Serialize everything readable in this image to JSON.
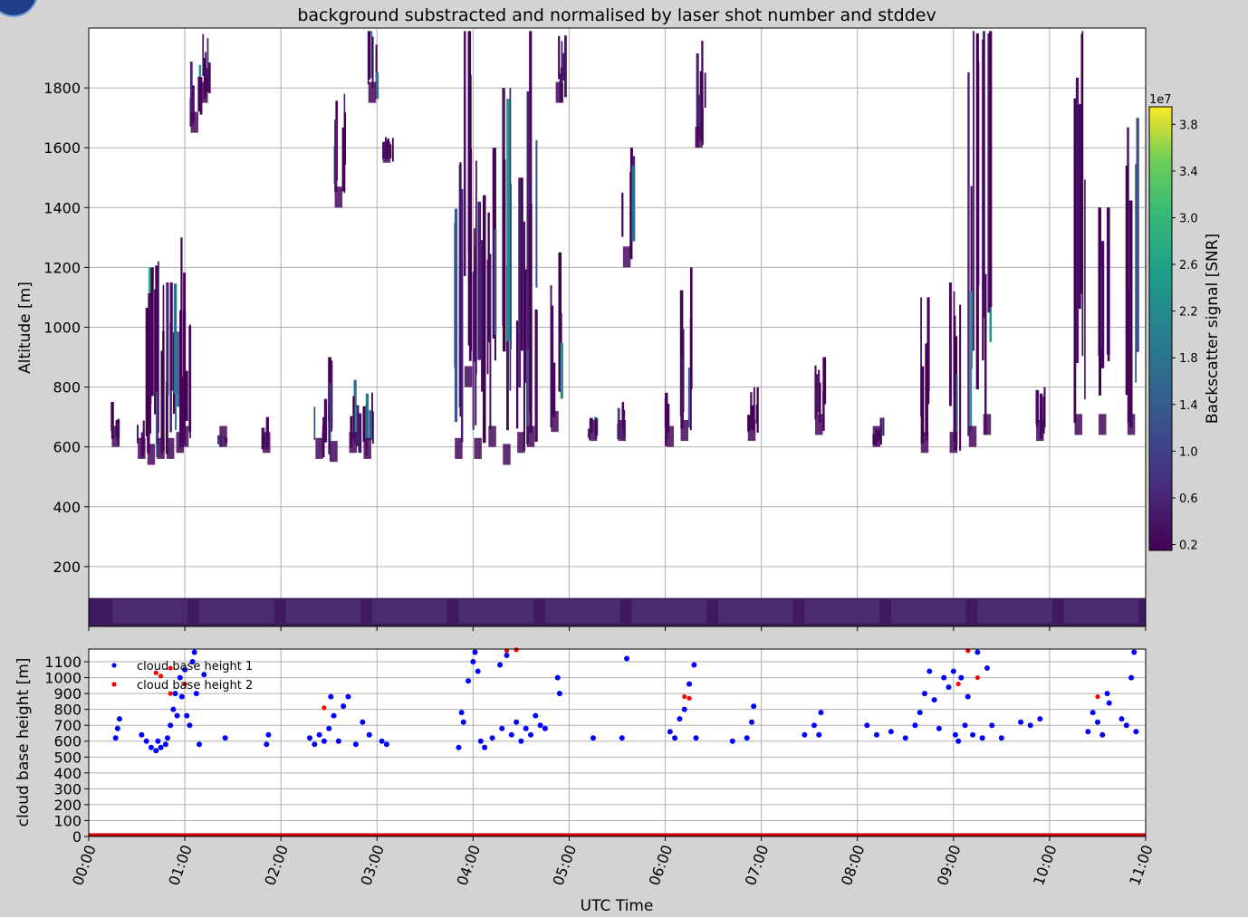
{
  "chart_data": [
    {
      "type": "heatmap",
      "title": "background substracted and normalised by laser shot number and stddev",
      "ylabel": "Altitude [m]",
      "xlim": [
        0,
        11
      ],
      "ylim": [
        0,
        2000
      ],
      "y_ticks": [
        "200",
        "400",
        "600",
        "800",
        "1000",
        "1200",
        "1400",
        "1600",
        "1800"
      ],
      "grid": true,
      "colorbar": {
        "label": "Backscatter signal [SNR]",
        "exponent": "1e7",
        "range": [
          0.15,
          3.95
        ],
        "ticks": [
          "0.2",
          "0.6",
          "1.0",
          "1.4",
          "1.8",
          "2.2",
          "2.6",
          "3.0",
          "3.4",
          "3.8"
        ],
        "colormap": "viridis"
      },
      "surface_layer": {
        "altitude_range_m": [
          0,
          95
        ],
        "description_color": "#3b1f5c"
      },
      "cloud_streaks": [
        {
          "t": 0.28,
          "y0": 600,
          "y1": 750
        },
        {
          "t": 0.55,
          "y0": 560,
          "y1": 700
        },
        {
          "t": 0.65,
          "y0": 540,
          "y1": 1200
        },
        {
          "t": 0.75,
          "y0": 560,
          "y1": 1300
        },
        {
          "t": 0.85,
          "y0": 560,
          "y1": 1150
        },
        {
          "t": 0.95,
          "y0": 580,
          "y1": 1100
        },
        {
          "t": 1.0,
          "y0": 600,
          "y1": 1300
        },
        {
          "t": 1.1,
          "y0": 1650,
          "y1": 1900
        },
        {
          "t": 1.2,
          "y0": 1750,
          "y1": 1980
        },
        {
          "t": 1.4,
          "y0": 600,
          "y1": 650
        },
        {
          "t": 1.85,
          "y0": 580,
          "y1": 700
        },
        {
          "t": 2.4,
          "y0": 560,
          "y1": 760
        },
        {
          "t": 2.55,
          "y0": 550,
          "y1": 900
        },
        {
          "t": 2.6,
          "y0": 1400,
          "y1": 1800
        },
        {
          "t": 2.75,
          "y0": 580,
          "y1": 850
        },
        {
          "t": 2.9,
          "y0": 560,
          "y1": 800
        },
        {
          "t": 2.95,
          "y0": 1750,
          "y1": 1990
        },
        {
          "t": 3.1,
          "y0": 1550,
          "y1": 1650
        },
        {
          "t": 3.85,
          "y0": 560,
          "y1": 1600
        },
        {
          "t": 3.95,
          "y0": 800,
          "y1": 1990
        },
        {
          "t": 4.05,
          "y0": 560,
          "y1": 1700
        },
        {
          "t": 4.2,
          "y0": 600,
          "y1": 1600
        },
        {
          "t": 4.35,
          "y0": 540,
          "y1": 1800
        },
        {
          "t": 4.5,
          "y0": 580,
          "y1": 1500
        },
        {
          "t": 4.6,
          "y0": 600,
          "y1": 1990
        },
        {
          "t": 4.85,
          "y0": 650,
          "y1": 1250
        },
        {
          "t": 4.9,
          "y0": 1750,
          "y1": 1990
        },
        {
          "t": 5.25,
          "y0": 620,
          "y1": 700
        },
        {
          "t": 5.55,
          "y0": 620,
          "y1": 750
        },
        {
          "t": 5.6,
          "y0": 1200,
          "y1": 1600
        },
        {
          "t": 6.05,
          "y0": 600,
          "y1": 800
        },
        {
          "t": 6.2,
          "y0": 620,
          "y1": 1200
        },
        {
          "t": 6.35,
          "y0": 1600,
          "y1": 1990
        },
        {
          "t": 6.9,
          "y0": 620,
          "y1": 800
        },
        {
          "t": 7.6,
          "y0": 640,
          "y1": 900
        },
        {
          "t": 8.2,
          "y0": 600,
          "y1": 700
        },
        {
          "t": 8.7,
          "y0": 580,
          "y1": 1100
        },
        {
          "t": 9.0,
          "y0": 580,
          "y1": 1200
        },
        {
          "t": 9.2,
          "y0": 600,
          "y1": 1990
        },
        {
          "t": 9.35,
          "y0": 640,
          "y1": 1990
        },
        {
          "t": 9.9,
          "y0": 620,
          "y1": 800
        },
        {
          "t": 10.3,
          "y0": 640,
          "y1": 1990
        },
        {
          "t": 10.55,
          "y0": 640,
          "y1": 1400
        },
        {
          "t": 10.85,
          "y0": 640,
          "y1": 1700
        }
      ]
    },
    {
      "type": "scatter",
      "xlabel": "UTC Time",
      "ylabel": "cloud base height [m]",
      "xlim": [
        0,
        11
      ],
      "ylim": [
        0,
        1180
      ],
      "x_ticks": [
        "00:00",
        "01:00",
        "02:00",
        "03:00",
        "04:00",
        "05:00",
        "06:00",
        "07:00",
        "08:00",
        "09:00",
        "10:00",
        "11:00"
      ],
      "y_ticks": [
        "0",
        "100",
        "200",
        "300",
        "400",
        "500",
        "600",
        "700",
        "800",
        "900",
        "1000",
        "1100"
      ],
      "grid": true,
      "legend": "upper-left",
      "baseline": {
        "y": 0,
        "color": "#cc0000"
      },
      "series": [
        {
          "name": "cloud base height 1",
          "color": "#0000ff",
          "points": [
            [
              0.28,
              620
            ],
            [
              0.3,
              680
            ],
            [
              0.32,
              740
            ],
            [
              0.55,
              640
            ],
            [
              0.6,
              600
            ],
            [
              0.65,
              560
            ],
            [
              0.7,
              540
            ],
            [
              0.72,
              600
            ],
            [
              0.75,
              560
            ],
            [
              0.8,
              580
            ],
            [
              0.82,
              620
            ],
            [
              0.85,
              700
            ],
            [
              0.88,
              800
            ],
            [
              0.9,
              900
            ],
            [
              0.92,
              760
            ],
            [
              0.95,
              1000
            ],
            [
              0.97,
              880
            ],
            [
              1.0,
              1050
            ],
            [
              1.02,
              760
            ],
            [
              1.05,
              700
            ],
            [
              1.08,
              1100
            ],
            [
              1.1,
              1160
            ],
            [
              1.12,
              900
            ],
            [
              1.15,
              580
            ],
            [
              1.2,
              1020
            ],
            [
              1.42,
              620
            ],
            [
              1.85,
              580
            ],
            [
              1.87,
              640
            ],
            [
              2.3,
              620
            ],
            [
              2.35,
              580
            ],
            [
              2.4,
              640
            ],
            [
              2.45,
              600
            ],
            [
              2.5,
              680
            ],
            [
              2.52,
              880
            ],
            [
              2.55,
              760
            ],
            [
              2.6,
              600
            ],
            [
              2.65,
              820
            ],
            [
              2.7,
              880
            ],
            [
              2.78,
              580
            ],
            [
              2.85,
              720
            ],
            [
              2.92,
              640
            ],
            [
              3.05,
              600
            ],
            [
              3.1,
              580
            ],
            [
              3.85,
              560
            ],
            [
              3.88,
              780
            ],
            [
              3.9,
              720
            ],
            [
              3.95,
              980
            ],
            [
              4.0,
              1100
            ],
            [
              4.02,
              1160
            ],
            [
              4.05,
              1040
            ],
            [
              4.08,
              600
            ],
            [
              4.12,
              560
            ],
            [
              4.2,
              620
            ],
            [
              4.28,
              1080
            ],
            [
              4.3,
              680
            ],
            [
              4.35,
              1140
            ],
            [
              4.4,
              640
            ],
            [
              4.45,
              720
            ],
            [
              4.5,
              600
            ],
            [
              4.55,
              680
            ],
            [
              4.6,
              640
            ],
            [
              4.65,
              760
            ],
            [
              4.7,
              700
            ],
            [
              4.75,
              680
            ],
            [
              4.88,
              1000
            ],
            [
              4.9,
              900
            ],
            [
              5.25,
              620
            ],
            [
              5.55,
              620
            ],
            [
              5.6,
              1120
            ],
            [
              6.05,
              660
            ],
            [
              6.1,
              620
            ],
            [
              6.15,
              740
            ],
            [
              6.2,
              800
            ],
            [
              6.25,
              960
            ],
            [
              6.3,
              1080
            ],
            [
              6.32,
              620
            ],
            [
              6.7,
              600
            ],
            [
              6.85,
              620
            ],
            [
              6.9,
              720
            ],
            [
              6.92,
              820
            ],
            [
              7.45,
              640
            ],
            [
              7.55,
              700
            ],
            [
              7.6,
              640
            ],
            [
              7.62,
              780
            ],
            [
              8.1,
              700
            ],
            [
              8.2,
              640
            ],
            [
              8.35,
              660
            ],
            [
              8.5,
              620
            ],
            [
              8.6,
              700
            ],
            [
              8.65,
              780
            ],
            [
              8.7,
              900
            ],
            [
              8.75,
              1040
            ],
            [
              8.8,
              860
            ],
            [
              8.85,
              680
            ],
            [
              8.9,
              1000
            ],
            [
              8.95,
              940
            ],
            [
              9.0,
              1040
            ],
            [
              9.02,
              640
            ],
            [
              9.05,
              600
            ],
            [
              9.08,
              1000
            ],
            [
              9.12,
              700
            ],
            [
              9.15,
              880
            ],
            [
              9.2,
              640
            ],
            [
              9.25,
              1160
            ],
            [
              9.3,
              620
            ],
            [
              9.35,
              1060
            ],
            [
              9.4,
              700
            ],
            [
              9.5,
              620
            ],
            [
              9.7,
              720
            ],
            [
              9.8,
              700
            ],
            [
              9.9,
              740
            ],
            [
              10.4,
              660
            ],
            [
              10.45,
              780
            ],
            [
              10.5,
              720
            ],
            [
              10.55,
              640
            ],
            [
              10.6,
              900
            ],
            [
              10.62,
              840
            ],
            [
              10.75,
              740
            ],
            [
              10.8,
              700
            ],
            [
              10.85,
              1000
            ],
            [
              10.88,
              1160
            ],
            [
              10.9,
              660
            ]
          ]
        },
        {
          "name": "cloud base height 2",
          "color": "#ff0000",
          "points": [
            [
              0.7,
              1030
            ],
            [
              0.75,
              1010
            ],
            [
              0.85,
              1060
            ],
            [
              0.85,
              900
            ],
            [
              1.0,
              960
            ],
            [
              2.45,
              810
            ],
            [
              4.35,
              1170
            ],
            [
              4.45,
              1175
            ],
            [
              6.2,
              880
            ],
            [
              6.25,
              870
            ],
            [
              9.15,
              1170
            ],
            [
              9.05,
              960
            ],
            [
              9.25,
              1000
            ],
            [
              10.5,
              880
            ]
          ]
        }
      ]
    }
  ]
}
